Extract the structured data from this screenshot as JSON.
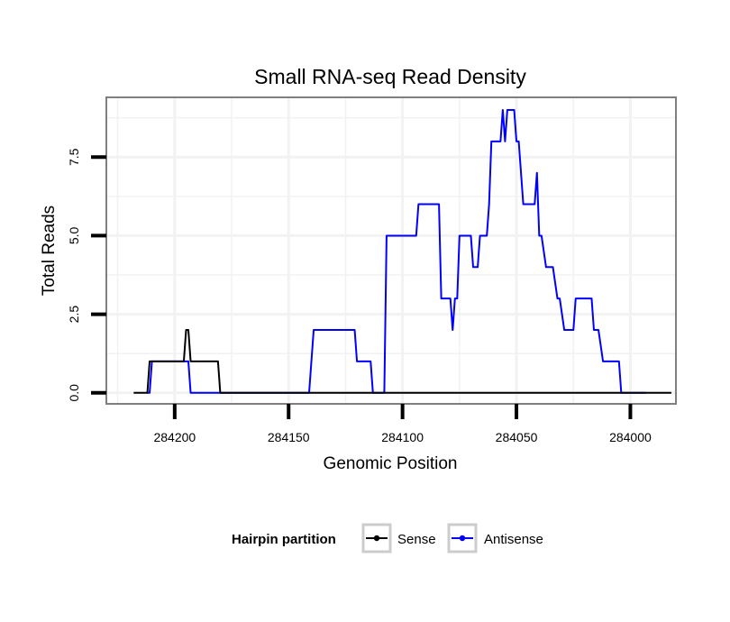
{
  "chart_data": {
    "type": "line",
    "title": "Small RNA-seq Read Density",
    "xlabel": "Genomic Position",
    "ylabel": "Total Reads",
    "xlim": [
      284230,
      283980
    ],
    "x_reversed": true,
    "ylim": [
      -0.35,
      9.4
    ],
    "grid": true,
    "x_ticks": [
      284200,
      284150,
      284100,
      284050,
      284000
    ],
    "x_tick_labels": [
      "284200",
      "284150",
      "284100",
      "284050",
      "284000"
    ],
    "y_ticks": [
      0,
      2.5,
      5,
      7.5
    ],
    "y_tick_labels": [
      "0.0",
      "2.5",
      "5.0",
      "7.5"
    ],
    "legend": {
      "title": "Hairpin partition",
      "placement": "bottom",
      "entries": [
        {
          "name": "Sense",
          "color": "#000000"
        },
        {
          "name": "Antisense",
          "color": "#0000ff"
        }
      ]
    },
    "series": [
      {
        "name": "Sense",
        "color": "#000000",
        "points": [
          [
            284218,
            0
          ],
          [
            284212,
            0
          ],
          [
            284211,
            1
          ],
          [
            284196,
            1
          ],
          [
            284195,
            2
          ],
          [
            284194,
            2
          ],
          [
            284193,
            1
          ],
          [
            284181,
            1
          ],
          [
            284180,
            0
          ],
          [
            283990,
            0
          ],
          [
            283982,
            0
          ]
        ]
      },
      {
        "name": "Antisense",
        "color": "#0000ff",
        "points": [
          [
            284212,
            0
          ],
          [
            284211,
            0
          ],
          [
            284210,
            1
          ],
          [
            284194,
            1
          ],
          [
            284193,
            0
          ],
          [
            284158,
            0
          ],
          [
            284141,
            0
          ],
          [
            284140,
            1
          ],
          [
            284139,
            2
          ],
          [
            284121,
            2
          ],
          [
            284120,
            1
          ],
          [
            284114,
            1
          ],
          [
            284113,
            0
          ],
          [
            284108,
            0
          ],
          [
            284107,
            5
          ],
          [
            284094,
            5
          ],
          [
            284093,
            6
          ],
          [
            284084,
            6
          ],
          [
            284083,
            3
          ],
          [
            284079,
            3
          ],
          [
            284078,
            2
          ],
          [
            284077,
            3
          ],
          [
            284076,
            3
          ],
          [
            284075,
            5
          ],
          [
            284070,
            5
          ],
          [
            284069,
            4
          ],
          [
            284067,
            4
          ],
          [
            284066,
            5
          ],
          [
            284063,
            5
          ],
          [
            284062,
            6
          ],
          [
            284061,
            8
          ],
          [
            284057,
            8
          ],
          [
            284056,
            9
          ],
          [
            284055,
            8
          ],
          [
            284054,
            9
          ],
          [
            284051,
            9
          ],
          [
            284050,
            8
          ],
          [
            284049,
            8
          ],
          [
            284047,
            6
          ],
          [
            284042,
            6
          ],
          [
            284041,
            7
          ],
          [
            284040,
            5
          ],
          [
            284039,
            5
          ],
          [
            284037,
            4
          ],
          [
            284034,
            4
          ],
          [
            284032,
            3
          ],
          [
            284031,
            3
          ],
          [
            284029,
            2
          ],
          [
            284025,
            2
          ],
          [
            284024,
            3
          ],
          [
            284017,
            3
          ],
          [
            284016,
            2
          ],
          [
            284014,
            2
          ],
          [
            284012,
            1
          ],
          [
            284005,
            1
          ],
          [
            284004,
            0
          ],
          [
            283993,
            0
          ]
        ]
      }
    ]
  },
  "colors": {
    "panel_border": "#7f7f7f",
    "grid": "#f2f2f2",
    "legend_key_border": "#cccccc"
  }
}
